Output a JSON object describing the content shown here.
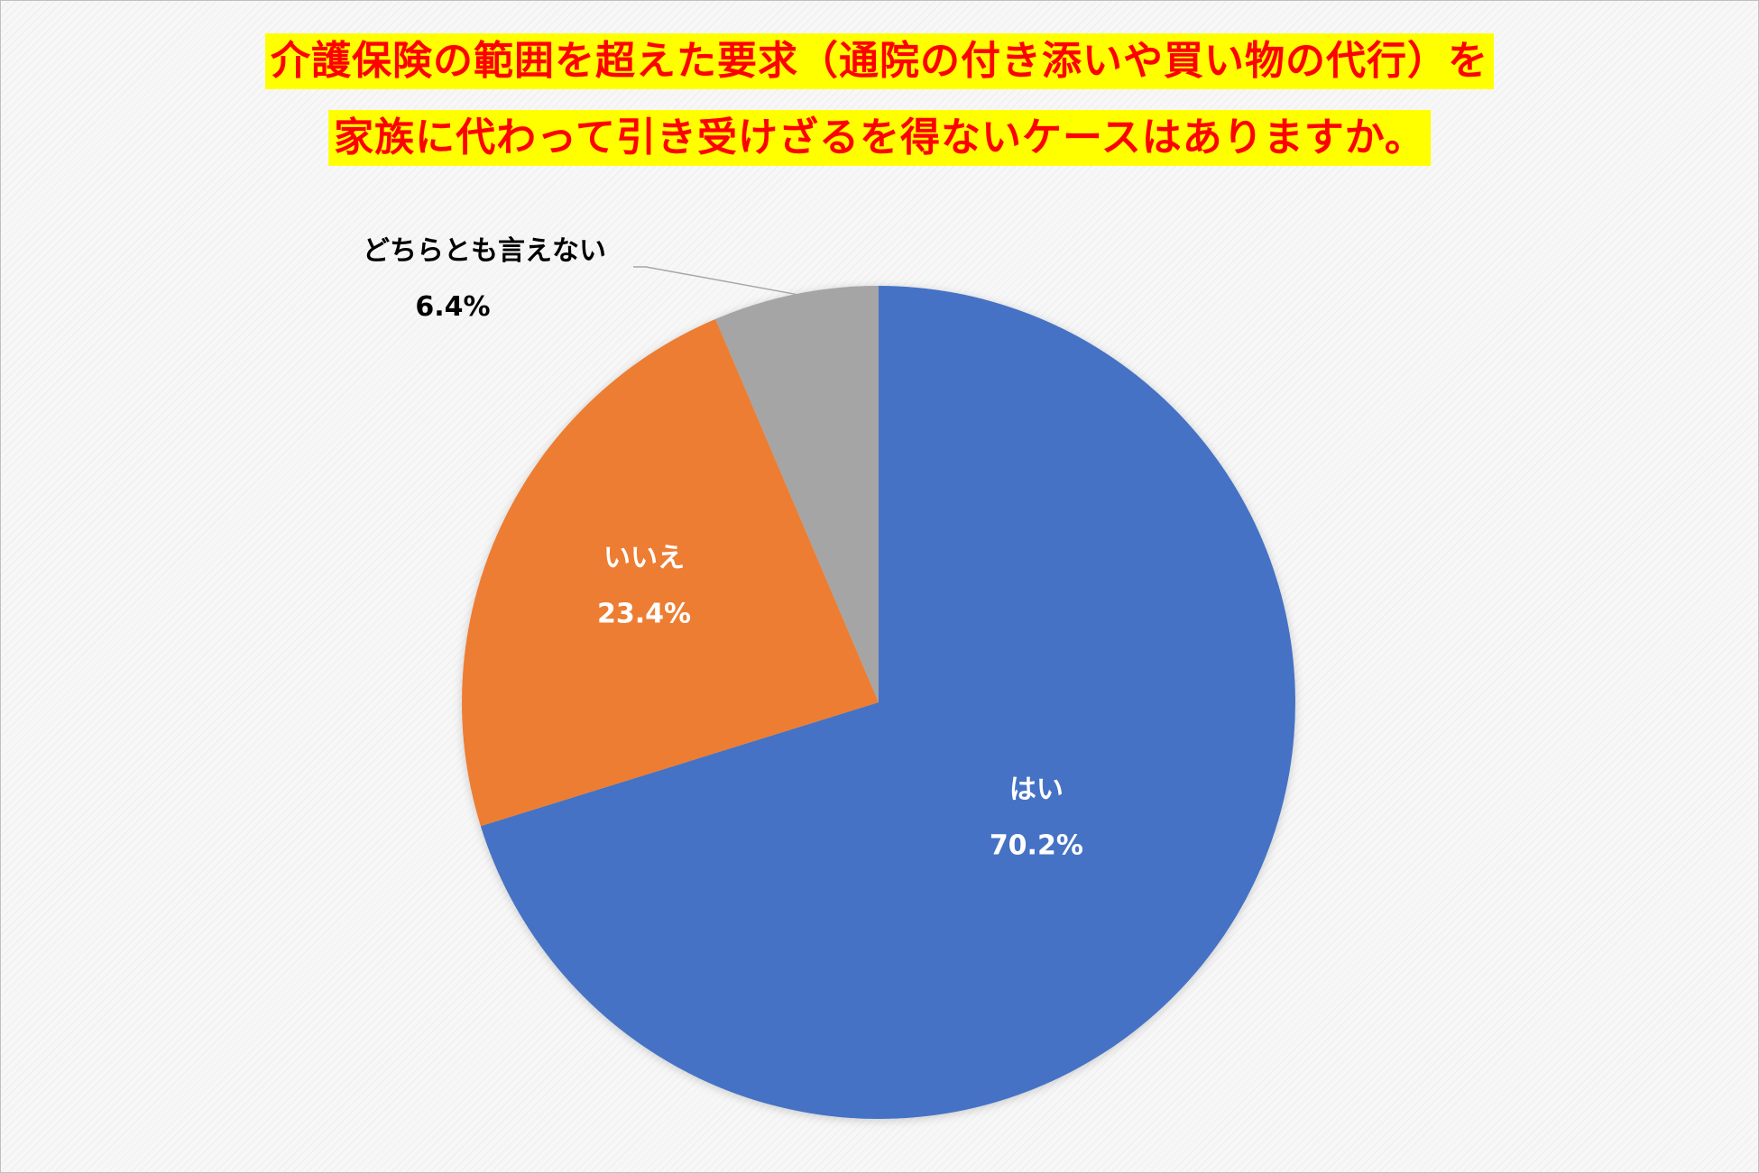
{
  "title": {
    "line1": "介護保険の範囲を超えた要求（通院の付き添いや買い物の代行）を",
    "line2": "家族に代わって引き受けざるを得ないケースはありますか。"
  },
  "colors": {
    "title_text": "#ff0000",
    "title_background": "#ffff00",
    "inside_label": "#ffffff",
    "outside_label": "#000000",
    "leader_line": "#a6a6a6"
  },
  "chart_data": {
    "type": "pie",
    "title": "介護保険の範囲を超えた要求（通院の付き添いや買い物の代行）を家族に代わって引き受けざるを得ないケースはありますか。",
    "start": "12 o'clock",
    "direction": "clockwise",
    "slices": [
      {
        "label": "はい",
        "value": 70.2,
        "value_label": "70.2%",
        "color": "#4472c4"
      },
      {
        "label": "いいえ",
        "value": 23.4,
        "value_label": "23.4%",
        "color": "#ed7d31"
      },
      {
        "label": "どちらとも言えない",
        "value": 6.4,
        "value_label": "6.4%",
        "color": "#a5a5a5"
      }
    ]
  }
}
